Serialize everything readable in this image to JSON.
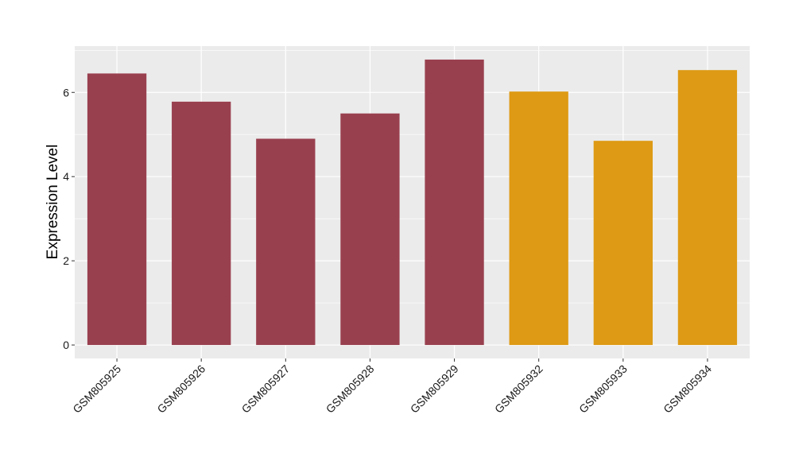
{
  "chart_data": {
    "type": "bar",
    "title": "",
    "xlabel": "",
    "ylabel": "Expression Level",
    "categories": [
      "GSM805925",
      "GSM805926",
      "GSM805927",
      "GSM805928",
      "GSM805929",
      "GSM805932",
      "GSM805933",
      "GSM805934"
    ],
    "values": [
      6.45,
      5.78,
      4.9,
      5.5,
      6.78,
      6.02,
      4.85,
      6.53
    ],
    "bar_colors": [
      "#99404F",
      "#99404F",
      "#99404F",
      "#99404F",
      "#99404F",
      "#DE9A14",
      "#DE9A14",
      "#DE9A14"
    ],
    "yticks": [
      0,
      2,
      4,
      6
    ],
    "ylim": [
      -0.32,
      7.1
    ],
    "grid": true,
    "legend": "none",
    "panel_background": "#EBEBEB",
    "gridline_color": "#FFFFFF"
  }
}
